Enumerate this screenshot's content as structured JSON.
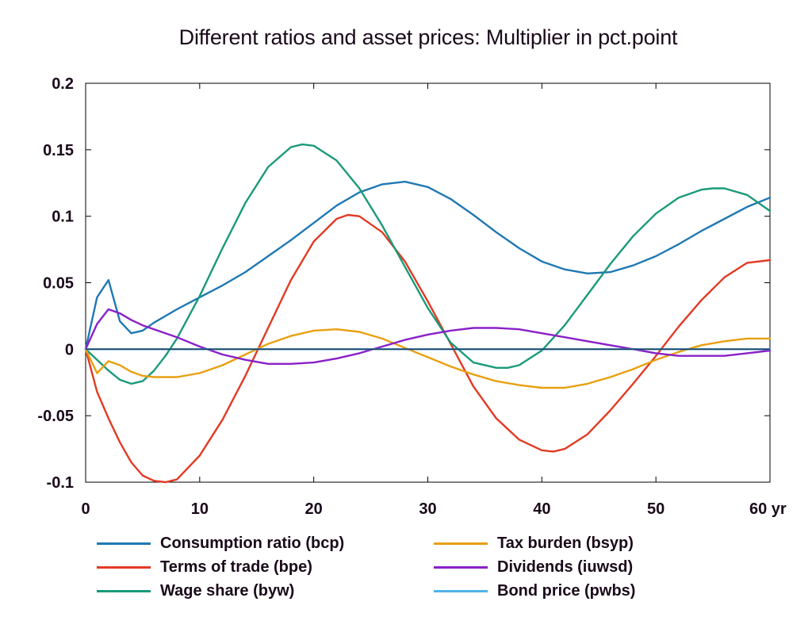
{
  "chart_data": {
    "type": "line",
    "title": "Different ratios and asset prices: Multiplier in pct.point",
    "xlabel": "",
    "ylabel": "",
    "xlim": [
      0,
      60
    ],
    "ylim": [
      -0.1,
      0.2
    ],
    "x_ticks": [
      0,
      10,
      20,
      30,
      40,
      50,
      60
    ],
    "x_tick_labels": [
      "0",
      "10",
      "20",
      "30",
      "40",
      "50",
      "60 yr"
    ],
    "y_ticks": [
      -0.1,
      -0.05,
      0,
      0.05,
      0.1,
      0.15,
      0.2
    ],
    "y_tick_labels": [
      "-0.1",
      "-0.05",
      "0",
      "0.05",
      "0.1",
      "0.15",
      "0.2"
    ],
    "grid": false,
    "legend_position": "bottom",
    "series": [
      {
        "name": "Consumption ratio (bcp)",
        "color": "#1f78b4",
        "x": [
          0,
          1,
          2,
          3,
          4,
          5,
          6,
          8,
          10,
          12,
          14,
          16,
          18,
          20,
          22,
          24,
          26,
          28,
          30,
          32,
          34,
          36,
          38,
          40,
          42,
          44,
          46,
          48,
          50,
          52,
          54,
          56,
          58,
          60
        ],
        "values": [
          0,
          0.039,
          0.052,
          0.021,
          0.012,
          0.014,
          0.02,
          0.03,
          0.039,
          0.048,
          0.058,
          0.07,
          0.082,
          0.095,
          0.108,
          0.118,
          0.124,
          0.126,
          0.122,
          0.113,
          0.101,
          0.088,
          0.076,
          0.066,
          0.06,
          0.057,
          0.058,
          0.063,
          0.07,
          0.079,
          0.089,
          0.098,
          0.107,
          0.114
        ]
      },
      {
        "name": "Terms of trade (bpe)",
        "color": "#e23a24",
        "x": [
          0,
          1,
          2,
          3,
          4,
          5,
          6,
          7,
          8,
          10,
          12,
          14,
          16,
          18,
          20,
          22,
          23,
          24,
          26,
          28,
          30,
          32,
          34,
          36,
          38,
          40,
          41,
          42,
          44,
          46,
          48,
          50,
          52,
          54,
          56,
          58,
          60
        ],
        "values": [
          0,
          -0.032,
          -0.052,
          -0.07,
          -0.085,
          -0.095,
          -0.099,
          -0.1,
          -0.098,
          -0.08,
          -0.053,
          -0.02,
          0.016,
          0.052,
          0.081,
          0.098,
          0.101,
          0.1,
          0.088,
          0.066,
          0.036,
          0.004,
          -0.028,
          -0.052,
          -0.068,
          -0.076,
          -0.077,
          -0.075,
          -0.064,
          -0.046,
          -0.026,
          -0.005,
          0.017,
          0.037,
          0.054,
          0.065,
          0.067
        ]
      },
      {
        "name": "Wage share (byw)",
        "color": "#1a9a7a",
        "x": [
          0,
          1,
          2,
          3,
          4,
          5,
          6,
          7,
          8,
          10,
          12,
          14,
          16,
          18,
          19,
          20,
          22,
          24,
          26,
          28,
          30,
          32,
          34,
          36,
          37,
          38,
          40,
          42,
          44,
          46,
          48,
          50,
          52,
          54,
          55,
          56,
          58,
          60
        ],
        "values": [
          0,
          -0.008,
          -0.016,
          -0.023,
          -0.026,
          -0.024,
          -0.016,
          -0.005,
          0.008,
          0.04,
          0.076,
          0.11,
          0.137,
          0.152,
          0.154,
          0.153,
          0.142,
          0.121,
          0.093,
          0.062,
          0.031,
          0.005,
          -0.01,
          -0.014,
          -0.014,
          -0.012,
          -0.001,
          0.018,
          0.041,
          0.064,
          0.085,
          0.102,
          0.114,
          0.12,
          0.121,
          0.121,
          0.116,
          0.104
        ]
      },
      {
        "name": "Tax burden (bsyp)",
        "color": "#e8a010",
        "x": [
          0,
          1,
          2,
          3,
          4,
          5,
          6,
          7,
          8,
          10,
          12,
          14,
          16,
          18,
          20,
          22,
          24,
          26,
          28,
          30,
          32,
          34,
          36,
          38,
          40,
          42,
          44,
          46,
          48,
          50,
          52,
          54,
          56,
          58,
          60
        ],
        "values": [
          0,
          -0.018,
          -0.009,
          -0.012,
          -0.017,
          -0.02,
          -0.021,
          -0.021,
          -0.021,
          -0.018,
          -0.012,
          -0.004,
          0.004,
          0.01,
          0.014,
          0.015,
          0.013,
          0.008,
          0.001,
          -0.006,
          -0.013,
          -0.019,
          -0.024,
          -0.027,
          -0.029,
          -0.029,
          -0.026,
          -0.021,
          -0.015,
          -0.008,
          -0.002,
          0.003,
          0.006,
          0.008,
          0.008
        ]
      },
      {
        "name": "Dividends (iuwsd)",
        "color": "#8a20c8",
        "x": [
          0,
          1,
          2,
          3,
          4,
          5,
          6,
          8,
          10,
          12,
          14,
          16,
          18,
          20,
          22,
          24,
          26,
          28,
          30,
          32,
          34,
          36,
          38,
          40,
          42,
          44,
          46,
          48,
          50,
          52,
          54,
          56,
          58,
          60
        ],
        "values": [
          0,
          0.019,
          0.03,
          0.027,
          0.022,
          0.018,
          0.015,
          0.009,
          0.002,
          -0.004,
          -0.008,
          -0.011,
          -0.011,
          -0.01,
          -0.007,
          -0.003,
          0.002,
          0.007,
          0.011,
          0.014,
          0.016,
          0.016,
          0.015,
          0.012,
          0.009,
          0.006,
          0.003,
          0.0,
          -0.003,
          -0.005,
          -0.005,
          -0.005,
          -0.003,
          -0.001
        ]
      },
      {
        "name": "Bond price (pwbs)",
        "color": "#4fb3e8",
        "x": [
          0,
          60
        ],
        "values": [
          0,
          0
        ]
      }
    ]
  },
  "zero_line_color": "#1a3a5a",
  "axis_color": "#000000"
}
